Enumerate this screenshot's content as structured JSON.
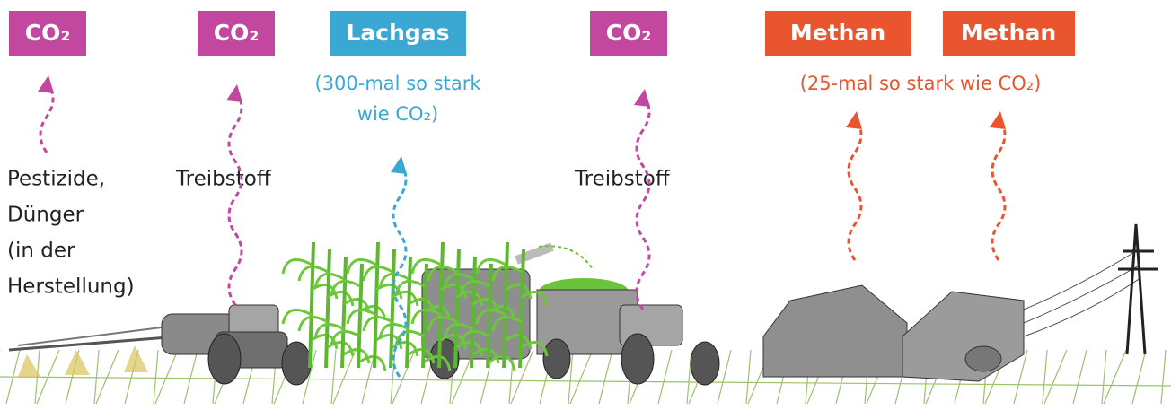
{
  "badges": [
    {
      "label": "CO₂"
    },
    {
      "label": "CO₂"
    },
    {
      "label": "Lachgas"
    },
    {
      "label": "CO₂"
    },
    {
      "label": "Methan"
    },
    {
      "label": "Methan"
    }
  ],
  "notes": [
    {
      "lines": [
        "(300-mal so stark",
        "wie CO₂)"
      ]
    },
    {
      "lines": [
        "(25-mal so stark wie CO₂)"
      ]
    }
  ],
  "sources": [
    {
      "lines": [
        "Pestizide,",
        "Dünger",
        "(in der",
        "Herstellung)"
      ]
    },
    {
      "lines": [
        "Treibstoff"
      ]
    },
    {
      "lines": [
        "Treibstoff"
      ]
    }
  ]
}
